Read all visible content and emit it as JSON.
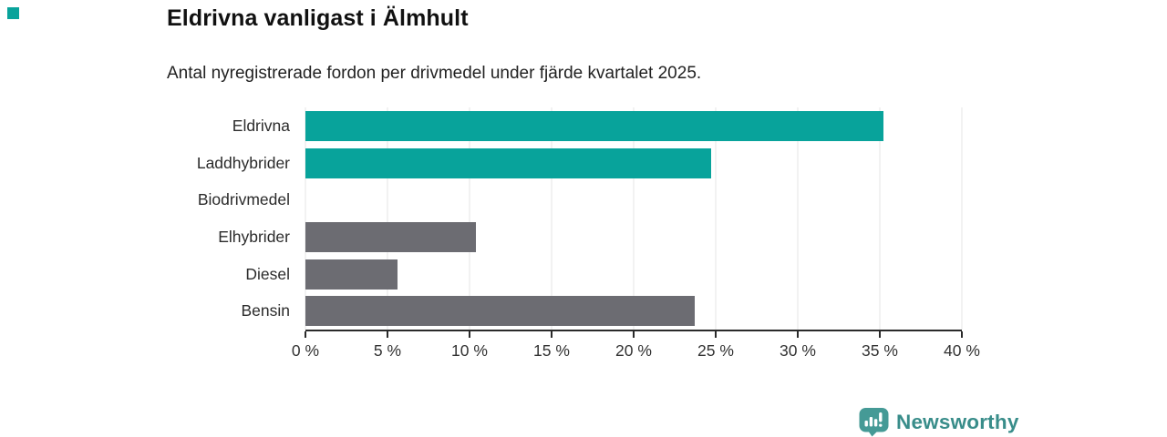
{
  "page": {
    "accent_color": "#08a39b",
    "background": "#ffffff"
  },
  "chart_data": {
    "type": "bar",
    "orientation": "horizontal",
    "title": "Eldrivna vanligast i Älmhult",
    "subtitle": "Antal nyregistrerade fordon per drivmedel under fjärde kvartalet 2025.",
    "categories": [
      "Eldrivna",
      "Laddhybrider",
      "Biodrivmedel",
      "Elhybrider",
      "Diesel",
      "Bensin"
    ],
    "values": [
      35.2,
      24.7,
      0,
      10.4,
      5.6,
      23.7
    ],
    "bar_colors": [
      "#08a39b",
      "#08a39b",
      "#6c6c72",
      "#6c6c72",
      "#6c6c72",
      "#6c6c72"
    ],
    "highlight_color": "#08a39b",
    "default_color": "#6c6c72",
    "xlim": [
      0,
      40
    ],
    "x_ticks": [
      0,
      5,
      10,
      15,
      20,
      25,
      30,
      35,
      40
    ],
    "x_tick_labels": [
      "0 %",
      "5 %",
      "10 %",
      "15 %",
      "20 %",
      "25 %",
      "30 %",
      "35 %",
      "40 %"
    ],
    "grid": "vertical",
    "grid_color": "#e4e4e4",
    "axis_color": "#2a2a2a",
    "legend": "none"
  },
  "footer": {
    "brand": "Newsworthy",
    "brand_text_color": "#398d8a",
    "logo_icon": "bar-chart-speech-bubble",
    "logo_icon_color": "#459a96"
  }
}
